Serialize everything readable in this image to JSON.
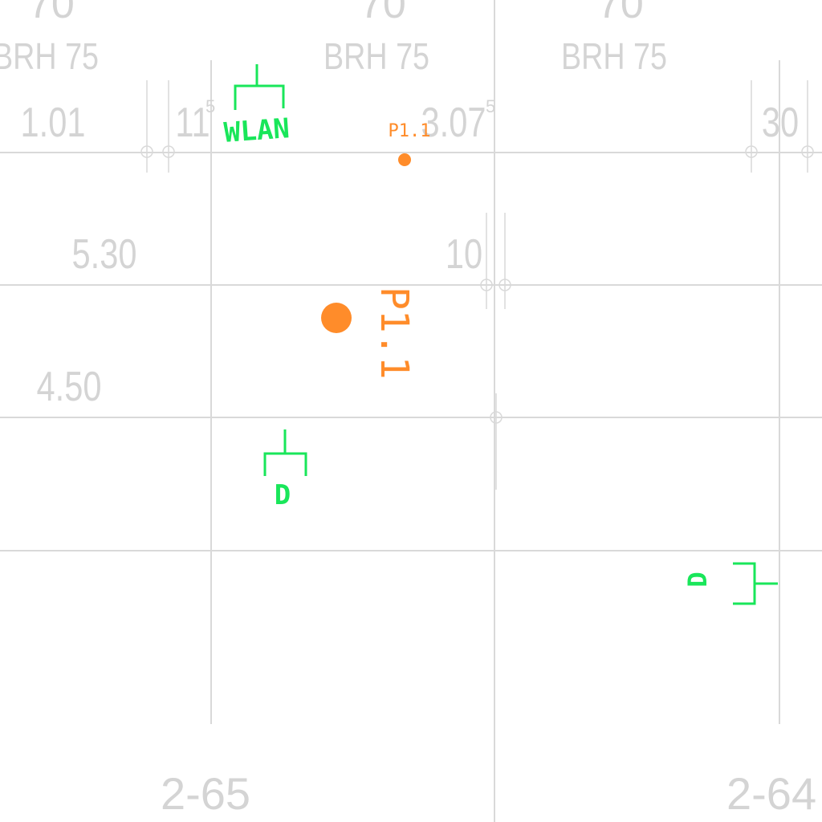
{
  "header_partial_numbers": [
    "70",
    "70",
    "70"
  ],
  "brh_labels": [
    "BRH 75",
    "BRH 75",
    "BRH 75"
  ],
  "dimensions": {
    "d1": "1.01",
    "d2": "11",
    "d2_sup": "5",
    "d3": "3.07",
    "d3_sup": "5",
    "d4": "30",
    "d5": "5.30",
    "d6": "10",
    "d7": "4.50"
  },
  "sockets": {
    "wlan_label": "WLAN",
    "d_label_1": "D",
    "d_label_2": "D"
  },
  "outlets": {
    "small_label": "P1.1",
    "large_label": "P1.1"
  },
  "rooms": [
    "2-65",
    "2-64"
  ],
  "colors": {
    "grid": "#d9d9d9",
    "dimension_text": "#d4d4d4",
    "data_socket": "#19e65a",
    "power_outlet": "#ff8c2a",
    "background": "#ffffff"
  }
}
